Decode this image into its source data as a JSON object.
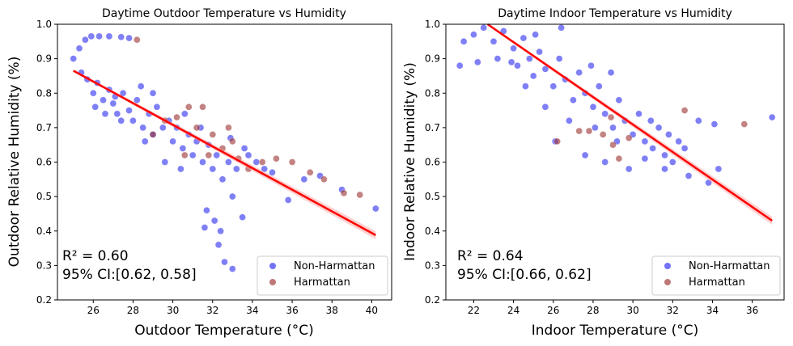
{
  "chart_data": [
    {
      "type": "scatter",
      "title": "Daytime Outdoor Temperature vs Humidity",
      "xlabel": "Outdoor Temperature (°C)",
      "ylabel": "Outdoor Relative Humidity (%)",
      "xlim": [
        24.2,
        41.0
      ],
      "ylim": [
        0.2,
        1.0
      ],
      "xticks": [
        26,
        28,
        30,
        32,
        34,
        36,
        38,
        40
      ],
      "xtick_labels": [
        "26",
        "28",
        "30",
        "32",
        "34",
        "36",
        "38",
        "40"
      ],
      "yticks": [
        0.2,
        0.3,
        0.4,
        0.5,
        0.6,
        0.7,
        0.8,
        0.9,
        1.0
      ],
      "ytick_labels": [
        "0.2",
        "0.3",
        "0.4",
        "0.5",
        "0.6",
        "0.7",
        "0.8",
        "0.9",
        "1.0"
      ],
      "grid": false,
      "legend_position": "bottom-right",
      "annotation": {
        "r2_label": "R² = 0.60",
        "ci_label": "95% CI:[0.62, 0.58]"
      },
      "regression": {
        "x": [
          25.0,
          40.2
        ],
        "y": [
          0.865,
          0.388
        ],
        "color": "#ff0000"
      },
      "series": [
        {
          "name": "Non-Harmattan",
          "color": "#0000ee",
          "points": [
            [
              25.0,
              0.9
            ],
            [
              25.3,
              0.93
            ],
            [
              25.6,
              0.955
            ],
            [
              25.9,
              0.965
            ],
            [
              26.3,
              0.965
            ],
            [
              26.8,
              0.965
            ],
            [
              27.4,
              0.963
            ],
            [
              27.8,
              0.96
            ],
            [
              25.4,
              0.86
            ],
            [
              25.7,
              0.84
            ],
            [
              26.0,
              0.8
            ],
            [
              26.2,
              0.83
            ],
            [
              26.5,
              0.78
            ],
            [
              26.8,
              0.81
            ],
            [
              27.0,
              0.77
            ],
            [
              27.2,
              0.74
            ],
            [
              27.5,
              0.8
            ],
            [
              27.8,
              0.75
            ],
            [
              28.0,
              0.72
            ],
            [
              28.2,
              0.78
            ],
            [
              28.5,
              0.7
            ],
            [
              28.8,
              0.74
            ],
            [
              29.0,
              0.68
            ],
            [
              29.2,
              0.76
            ],
            [
              29.5,
              0.7
            ],
            [
              29.8,
              0.72
            ],
            [
              30.0,
              0.66
            ],
            [
              30.2,
              0.7
            ],
            [
              30.5,
              0.64
            ],
            [
              30.8,
              0.68
            ],
            [
              31.0,
              0.62
            ],
            [
              31.2,
              0.66
            ],
            [
              31.5,
              0.6
            ],
            [
              31.8,
              0.65
            ],
            [
              32.0,
              0.58
            ],
            [
              32.2,
              0.62
            ],
            [
              32.5,
              0.55
            ],
            [
              32.8,
              0.6
            ],
            [
              33.0,
              0.5
            ],
            [
              33.2,
              0.58
            ],
            [
              31.7,
              0.46
            ],
            [
              32.1,
              0.43
            ],
            [
              32.4,
              0.4
            ],
            [
              32.6,
              0.31
            ],
            [
              33.0,
              0.29
            ],
            [
              32.3,
              0.36
            ],
            [
              31.6,
              0.41
            ],
            [
              33.5,
              0.44
            ],
            [
              33.8,
              0.62
            ],
            [
              34.2,
              0.6
            ],
            [
              35.0,
              0.57
            ],
            [
              35.8,
              0.49
            ],
            [
              36.6,
              0.55
            ],
            [
              37.4,
              0.56
            ],
            [
              38.5,
              0.52
            ],
            [
              40.2,
              0.465
            ],
            [
              29.6,
              0.6
            ],
            [
              30.4,
              0.58
            ],
            [
              28.6,
              0.66
            ],
            [
              27.4,
              0.72
            ],
            [
              26.6,
              0.74
            ],
            [
              29.0,
              0.8
            ],
            [
              28.4,
              0.82
            ],
            [
              30.6,
              0.74
            ],
            [
              31.4,
              0.7
            ],
            [
              32.9,
              0.67
            ],
            [
              33.6,
              0.64
            ],
            [
              34.6,
              0.58
            ],
            [
              26.1,
              0.76
            ],
            [
              27.1,
              0.79
            ]
          ]
        },
        {
          "name": "Harmattan",
          "color": "#9b3030",
          "points": [
            [
              28.2,
              0.955
            ],
            [
              29.6,
              0.72
            ],
            [
              30.2,
              0.73
            ],
            [
              30.8,
              0.76
            ],
            [
              31.5,
              0.76
            ],
            [
              31.2,
              0.7
            ],
            [
              32.0,
              0.68
            ],
            [
              32.5,
              0.64
            ],
            [
              33.0,
              0.66
            ],
            [
              30.6,
              0.62
            ],
            [
              31.8,
              0.62
            ],
            [
              33.3,
              0.61
            ],
            [
              33.8,
              0.58
            ],
            [
              34.5,
              0.6
            ],
            [
              35.2,
              0.61
            ],
            [
              36.0,
              0.6
            ],
            [
              36.9,
              0.57
            ],
            [
              37.6,
              0.55
            ],
            [
              38.6,
              0.51
            ],
            [
              39.4,
              0.505
            ],
            [
              32.8,
              0.7
            ],
            [
              29.0,
              0.68
            ]
          ]
        }
      ]
    },
    {
      "type": "scatter",
      "title": "Daytime Indoor Temperature vs Humidity",
      "xlabel": "Indoor Temperature (°C)",
      "ylabel": "Indoor Relative Humidity (%)",
      "xlim": [
        20.6,
        37.6
      ],
      "ylim": [
        0.2,
        1.0
      ],
      "xticks": [
        22,
        24,
        26,
        28,
        30,
        32,
        34,
        36
      ],
      "xtick_labels": [
        "22",
        "24",
        "26",
        "28",
        "30",
        "32",
        "34",
        "36"
      ],
      "yticks": [
        0.2,
        0.3,
        0.4,
        0.5,
        0.6,
        0.7,
        0.8,
        0.9,
        1.0
      ],
      "ytick_labels": [
        "0.2",
        "0.3",
        "0.4",
        "0.5",
        "0.6",
        "0.7",
        "0.8",
        "0.9",
        "1.0"
      ],
      "grid": false,
      "legend_position": "bottom-right",
      "annotation": {
        "r2_label": "R² = 0.64",
        "ci_label": "95% CI:[0.66, 0.62]"
      },
      "regression": {
        "x": [
          22.7,
          37.0
        ],
        "y": [
          1.0,
          0.43
        ],
        "color": "#ff0000"
      },
      "series": [
        {
          "name": "Non-Harmattan",
          "color": "#0000ee",
          "points": [
            [
              21.3,
              0.88
            ],
            [
              21.5,
              0.95
            ],
            [
              22.0,
              0.97
            ],
            [
              22.5,
              0.99
            ],
            [
              23.0,
              0.95
            ],
            [
              23.2,
              0.9
            ],
            [
              23.5,
              0.98
            ],
            [
              24.0,
              0.93
            ],
            [
              24.2,
              0.88
            ],
            [
              24.5,
              0.96
            ],
            [
              24.8,
              0.9
            ],
            [
              25.0,
              0.85
            ],
            [
              25.3,
              0.92
            ],
            [
              25.6,
              0.87
            ],
            [
              26.0,
              0.82
            ],
            [
              26.3,
              0.9
            ],
            [
              26.6,
              0.84
            ],
            [
              27.0,
              0.78
            ],
            [
              27.3,
              0.86
            ],
            [
              27.6,
              0.8
            ],
            [
              28.0,
              0.76
            ],
            [
              28.3,
              0.82
            ],
            [
              28.6,
              0.74
            ],
            [
              29.0,
              0.7
            ],
            [
              29.3,
              0.78
            ],
            [
              29.6,
              0.72
            ],
            [
              30.0,
              0.68
            ],
            [
              30.3,
              0.74
            ],
            [
              30.6,
              0.66
            ],
            [
              31.0,
              0.64
            ],
            [
              31.3,
              0.7
            ],
            [
              31.6,
              0.62
            ],
            [
              32.0,
              0.6
            ],
            [
              32.3,
              0.66
            ],
            [
              32.8,
              0.56
            ],
            [
              33.3,
              0.72
            ],
            [
              33.8,
              0.54
            ],
            [
              34.1,
              0.71
            ],
            [
              34.3,
              0.58
            ],
            [
              37.0,
              0.73
            ],
            [
              26.1,
              0.66
            ],
            [
              27.6,
              0.62
            ],
            [
              28.6,
              0.6
            ],
            [
              29.8,
              0.58
            ],
            [
              30.6,
              0.61
            ],
            [
              31.6,
              0.58
            ],
            [
              25.1,
              0.97
            ],
            [
              26.4,
              0.99
            ],
            [
              23.9,
              0.89
            ],
            [
              22.2,
              0.89
            ],
            [
              27.9,
              0.88
            ],
            [
              28.9,
              0.86
            ],
            [
              29.2,
              0.66
            ],
            [
              30.9,
              0.72
            ],
            [
              26.8,
              0.72
            ],
            [
              25.6,
              0.76
            ],
            [
              24.6,
              0.82
            ],
            [
              31.8,
              0.68
            ],
            [
              32.6,
              0.64
            ],
            [
              28.1,
              0.7
            ]
          ]
        },
        {
          "name": "Harmattan",
          "color": "#9b3030",
          "points": [
            [
              26.2,
              0.66
            ],
            [
              27.3,
              0.69
            ],
            [
              27.8,
              0.69
            ],
            [
              28.5,
              0.68
            ],
            [
              29.0,
              0.65
            ],
            [
              29.3,
              0.61
            ],
            [
              29.8,
              0.67
            ],
            [
              28.9,
              0.73
            ],
            [
              32.6,
              0.75
            ],
            [
              35.6,
              0.71
            ]
          ]
        }
      ]
    }
  ]
}
